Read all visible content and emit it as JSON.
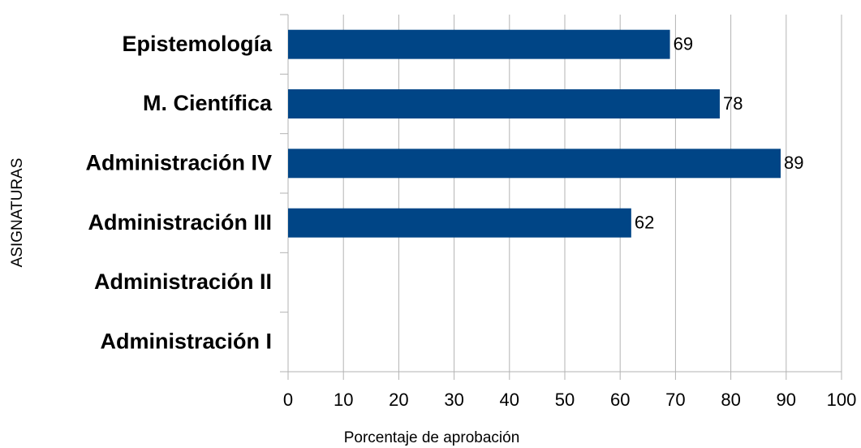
{
  "chart_data": {
    "type": "bar",
    "orientation": "horizontal",
    "categories": [
      "Epistemología",
      "M. Científica",
      "Administración IV",
      "Administración III",
      "Administración II",
      "Administración I"
    ],
    "values": [
      69,
      78,
      89,
      62,
      null,
      null
    ],
    "color": "#004586",
    "xlabel": "Porcentaje de aprobación",
    "ylabel": "ASIGNATURAS",
    "xlim": [
      0,
      100
    ],
    "xticks": [
      0,
      10,
      20,
      30,
      40,
      50,
      60,
      70,
      80,
      90,
      100
    ],
    "grid": true
  }
}
